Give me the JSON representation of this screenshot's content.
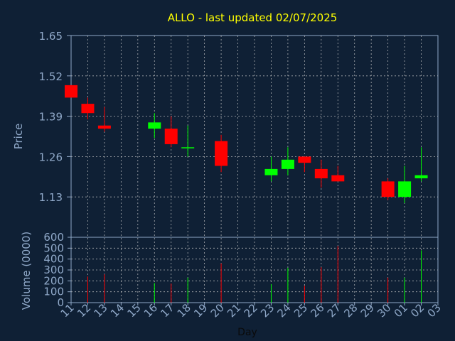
{
  "chart_data": {
    "type": "candlestick",
    "title": "ALLO - last updated 02/07/2025",
    "xlabel": "Day",
    "price_axis": {
      "label": "Price",
      "ylim": [
        1.0,
        1.65
      ],
      "ticks": [
        "1.65",
        "1.52",
        "1.39",
        "1.26",
        "1.13"
      ]
    },
    "volume_axis": {
      "label": "Volume (0000)",
      "ylim": [
        0,
        600
      ],
      "ticks": [
        "600",
        "500",
        "400",
        "300",
        "200",
        "100",
        "0"
      ]
    },
    "x_tick_labels": [
      "11",
      "12",
      "13",
      "14",
      "15",
      "16",
      "17",
      "18",
      "19",
      "20",
      "21",
      "22",
      "23",
      "24",
      "25",
      "26",
      "27",
      "28",
      "29",
      "30",
      "01",
      "02",
      "03"
    ],
    "grid": true,
    "colors": {
      "background": "#0f2035",
      "up": "#00ff00",
      "down": "#ff0000",
      "title": "#ffff00",
      "axis_text": "#8fa8c8",
      "grid": "#c8c8c8"
    },
    "candles": [
      {
        "day": "11",
        "open": 1.49,
        "high": 1.49,
        "low": 1.45,
        "close": 1.45,
        "volume": 0
      },
      {
        "day": "12",
        "open": 1.43,
        "high": 1.45,
        "low": 1.38,
        "close": 1.4,
        "volume": 240
      },
      {
        "day": "13",
        "open": 1.36,
        "high": 1.42,
        "low": 1.34,
        "close": 1.35,
        "volume": 260
      },
      {
        "day": "16",
        "open": 1.35,
        "high": 1.4,
        "low": 1.32,
        "close": 1.37,
        "volume": 180
      },
      {
        "day": "17",
        "open": 1.35,
        "high": 1.39,
        "low": 1.29,
        "close": 1.3,
        "volume": 175
      },
      {
        "day": "18",
        "open": 1.29,
        "high": 1.36,
        "low": 1.26,
        "close": 1.29,
        "volume": 230
      },
      {
        "day": "20",
        "open": 1.31,
        "high": 1.33,
        "low": 1.21,
        "close": 1.23,
        "volume": 360
      },
      {
        "day": "23",
        "open": 1.2,
        "high": 1.26,
        "low": 1.18,
        "close": 1.22,
        "volume": 170
      },
      {
        "day": "24",
        "open": 1.22,
        "high": 1.29,
        "low": 1.2,
        "close": 1.25,
        "volume": 320
      },
      {
        "day": "25",
        "open": 1.26,
        "high": 1.26,
        "low": 1.21,
        "close": 1.24,
        "volume": 155
      },
      {
        "day": "26",
        "open": 1.22,
        "high": 1.25,
        "low": 1.16,
        "close": 1.19,
        "volume": 325
      },
      {
        "day": "27",
        "open": 1.2,
        "high": 1.23,
        "low": 1.18,
        "close": 1.18,
        "volume": 520
      },
      {
        "day": "30",
        "open": 1.18,
        "high": 1.19,
        "low": 1.12,
        "close": 1.13,
        "volume": 230
      },
      {
        "day": "01",
        "open": 1.13,
        "high": 1.23,
        "low": 1.11,
        "close": 1.18,
        "volume": 230
      },
      {
        "day": "02",
        "open": 1.19,
        "high": 1.29,
        "low": 1.18,
        "close": 1.2,
        "volume": 480
      }
    ]
  }
}
